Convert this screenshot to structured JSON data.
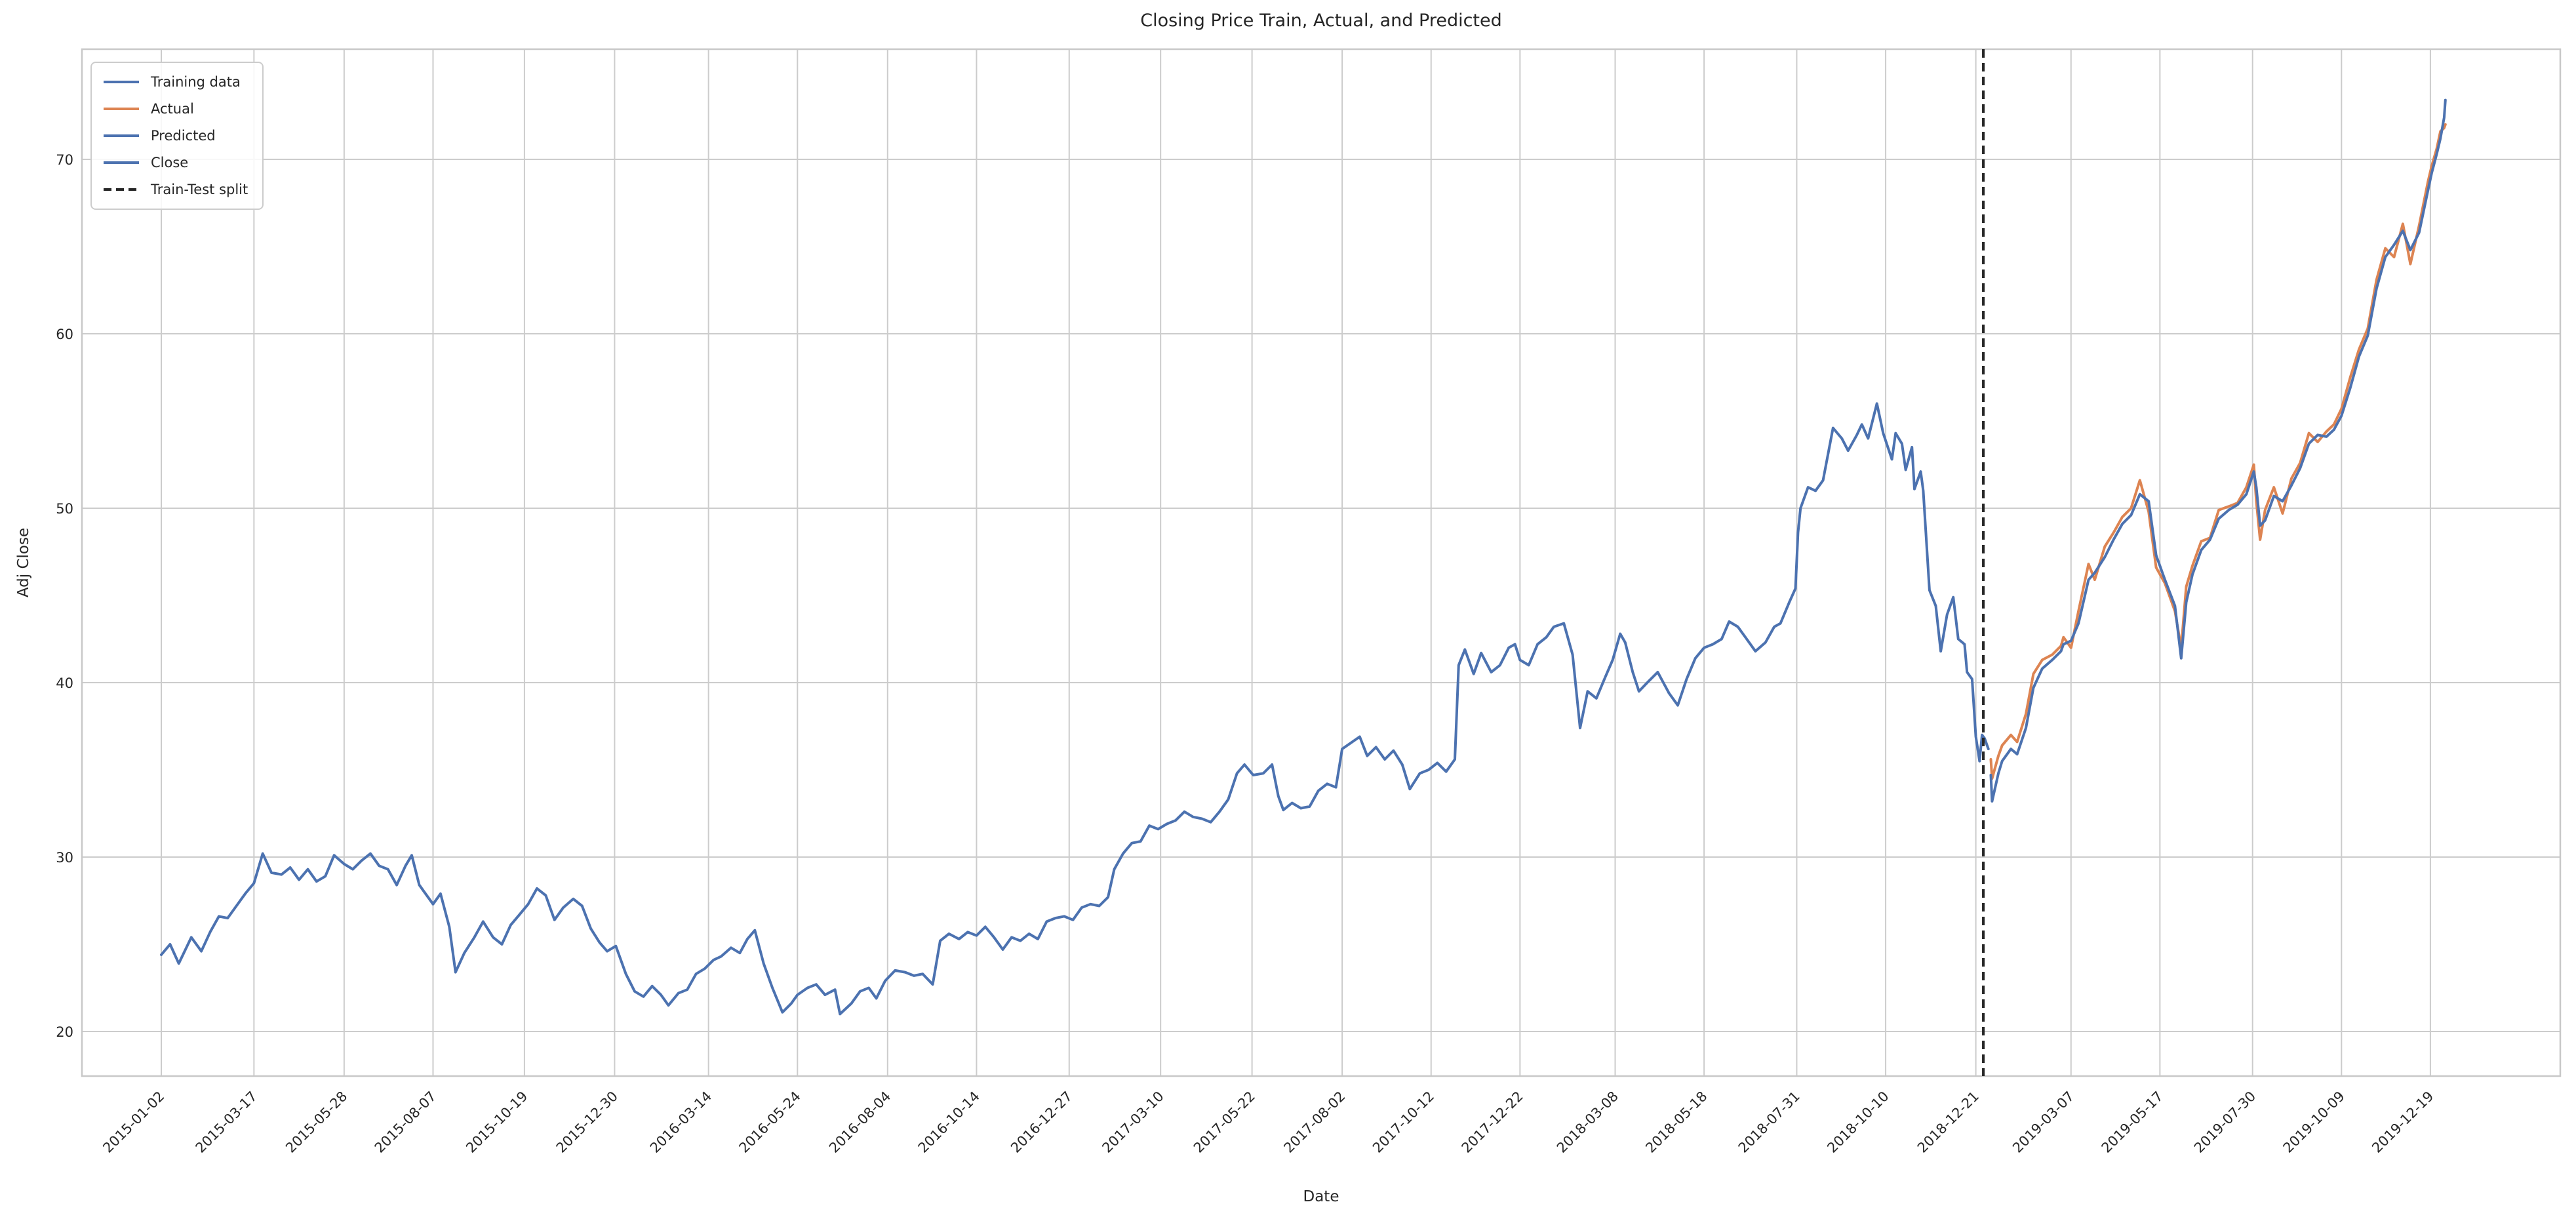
{
  "title": "Closing Price Train, Actual, and Predicted",
  "axis": {
    "xlabel": "Date",
    "ylabel": "Adj Close"
  },
  "colors": {
    "train_blue": "#4c72b0",
    "actual_orange": "#dd8452",
    "split_black": "#262626",
    "grid": "#cccccc",
    "frame": "#c8c8c8",
    "text": "#262626",
    "background": "#ffffff"
  },
  "legend": {
    "position": "upper left",
    "items": [
      {
        "label": "Training data",
        "color": "#4c72b0",
        "dash": "solid"
      },
      {
        "label": "Actual",
        "color": "#dd8452",
        "dash": "solid"
      },
      {
        "label": "Predicted",
        "color": "#4c72b0",
        "dash": "solid"
      },
      {
        "label": "Close",
        "color": "#4c72b0",
        "dash": "solid"
      },
      {
        "label": "Train-Test split",
        "color": "#262626",
        "dash": "dashed"
      }
    ]
  },
  "chart_data": {
    "type": "line",
    "title": "Closing Price Train, Actual, and Predicted",
    "xlabel": "Date",
    "ylabel": "Adj Close",
    "grid": true,
    "legend_position": "upper left",
    "yticks": [
      20,
      30,
      40,
      50,
      60,
      70
    ],
    "ylim": [
      17.4,
      76.3
    ],
    "x_range": {
      "start": "2015-01-02",
      "end": "2019-12-31"
    },
    "x_tick_labels": [
      "2015-01-02",
      "2015-03-17",
      "2015-05-28",
      "2015-08-07",
      "2015-10-19",
      "2015-12-30",
      "2016-03-14",
      "2016-05-24",
      "2016-08-04",
      "2016-10-14",
      "2016-12-27",
      "2017-03-10",
      "2017-05-22",
      "2017-08-02",
      "2017-10-12",
      "2017-12-22",
      "2018-03-08",
      "2018-05-18",
      "2018-07-31",
      "2018-10-10",
      "2018-12-21",
      "2019-03-07",
      "2019-05-17",
      "2019-07-30",
      "2019-10-09",
      "2019-12-19"
    ],
    "train_test_split_date": "2018-12-27",
    "series": [
      {
        "name": "Training data",
        "color": "#4c72b0",
        "line_style": "solid",
        "dates": [
          "2015-01-02",
          "2015-01-09",
          "2015-01-16",
          "2015-01-26",
          "2015-02-03",
          "2015-02-10",
          "2015-02-17",
          "2015-02-24",
          "2015-03-03",
          "2015-03-10",
          "2015-03-17",
          "2015-03-24",
          "2015-03-31",
          "2015-04-08",
          "2015-04-15",
          "2015-04-22",
          "2015-04-29",
          "2015-05-06",
          "2015-05-13",
          "2015-05-20",
          "2015-05-28",
          "2015-06-04",
          "2015-06-11",
          "2015-06-18",
          "2015-06-25",
          "2015-07-02",
          "2015-07-09",
          "2015-07-16",
          "2015-07-21",
          "2015-07-27",
          "2015-07-31",
          "2015-08-07",
          "2015-08-13",
          "2015-08-20",
          "2015-08-25",
          "2015-09-01",
          "2015-09-09",
          "2015-09-16",
          "2015-09-24",
          "2015-10-01",
          "2015-10-08",
          "2015-10-15",
          "2015-10-22",
          "2015-10-29",
          "2015-11-05",
          "2015-11-12",
          "2015-11-19",
          "2015-11-27",
          "2015-12-04",
          "2015-12-11",
          "2015-12-18",
          "2015-12-24",
          "2015-12-31",
          "2016-01-08",
          "2016-01-15",
          "2016-01-22",
          "2016-01-29",
          "2016-02-05",
          "2016-02-11",
          "2016-02-19",
          "2016-02-26",
          "2016-03-04",
          "2016-03-11",
          "2016-03-18",
          "2016-03-24",
          "2016-04-01",
          "2016-04-08",
          "2016-04-14",
          "2016-04-20",
          "2016-04-27",
          "2016-05-04",
          "2016-05-12",
          "2016-05-19",
          "2016-05-24",
          "2016-06-01",
          "2016-06-08",
          "2016-06-15",
          "2016-06-23",
          "2016-06-27",
          "2016-07-06",
          "2016-07-13",
          "2016-07-20",
          "2016-07-26",
          "2016-08-02",
          "2016-08-10",
          "2016-08-18",
          "2016-08-25",
          "2016-09-01",
          "2016-09-09",
          "2016-09-15",
          "2016-09-22",
          "2016-09-30",
          "2016-10-07",
          "2016-10-14",
          "2016-10-21",
          "2016-10-28",
          "2016-11-04",
          "2016-11-11",
          "2016-11-18",
          "2016-11-25",
          "2016-12-02",
          "2016-12-09",
          "2016-12-16",
          "2016-12-23",
          "2016-12-30",
          "2017-01-06",
          "2017-01-13",
          "2017-01-20",
          "2017-01-27",
          "2017-02-01",
          "2017-02-08",
          "2017-02-15",
          "2017-02-22",
          "2017-03-01",
          "2017-03-08",
          "2017-03-15",
          "2017-03-22",
          "2017-03-29",
          "2017-04-05",
          "2017-04-12",
          "2017-04-19",
          "2017-04-26",
          "2017-05-03",
          "2017-05-10",
          "2017-05-16",
          "2017-05-23",
          "2017-05-31",
          "2017-06-07",
          "2017-06-12",
          "2017-06-16",
          "2017-06-23",
          "2017-06-30",
          "2017-07-07",
          "2017-07-14",
          "2017-07-21",
          "2017-07-28",
          "2017-08-02",
          "2017-08-08",
          "2017-08-16",
          "2017-08-22",
          "2017-08-29",
          "2017-09-05",
          "2017-09-12",
          "2017-09-19",
          "2017-09-25",
          "2017-10-03",
          "2017-10-10",
          "2017-10-17",
          "2017-10-24",
          "2017-10-31",
          "2017-11-03",
          "2017-11-08",
          "2017-11-15",
          "2017-11-21",
          "2017-11-29",
          "2017-12-06",
          "2017-12-13",
          "2017-12-18",
          "2017-12-22",
          "2017-12-29",
          "2018-01-05",
          "2018-01-12",
          "2018-01-18",
          "2018-01-26",
          "2018-02-02",
          "2018-02-08",
          "2018-02-14",
          "2018-02-21",
          "2018-02-28",
          "2018-03-06",
          "2018-03-12",
          "2018-03-16",
          "2018-03-22",
          "2018-03-27",
          "2018-04-04",
          "2018-04-11",
          "2018-04-20",
          "2018-04-27",
          "2018-05-04",
          "2018-05-11",
          "2018-05-18",
          "2018-05-25",
          "2018-06-01",
          "2018-06-07",
          "2018-06-14",
          "2018-06-21",
          "2018-06-28",
          "2018-07-06",
          "2018-07-13",
          "2018-07-18",
          "2018-07-25",
          "2018-07-30",
          "2018-08-01",
          "2018-08-03",
          "2018-08-09",
          "2018-08-15",
          "2018-08-21",
          "2018-08-29",
          "2018-09-05",
          "2018-09-10",
          "2018-09-17",
          "2018-09-21",
          "2018-09-26",
          "2018-10-03",
          "2018-10-08",
          "2018-10-15",
          "2018-10-18",
          "2018-10-23",
          "2018-10-26",
          "2018-10-31",
          "2018-11-02",
          "2018-11-07",
          "2018-11-09",
          "2018-11-14",
          "2018-11-19",
          "2018-11-23",
          "2018-11-28",
          "2018-12-03",
          "2018-12-07",
          "2018-12-12",
          "2018-12-14",
          "2018-12-18",
          "2018-12-21",
          "2018-12-24",
          "2018-12-26",
          "2018-12-28",
          "2018-12-31"
        ],
        "values": [
          24.4,
          25.0,
          23.9,
          25.4,
          24.6,
          25.7,
          26.6,
          26.5,
          27.2,
          27.9,
          28.5,
          30.2,
          29.1,
          29.0,
          29.4,
          28.7,
          29.3,
          28.6,
          28.9,
          30.1,
          29.6,
          29.3,
          29.8,
          30.2,
          29.5,
          29.3,
          28.4,
          29.5,
          30.1,
          28.4,
          28.0,
          27.3,
          27.9,
          26.0,
          23.4,
          24.5,
          25.4,
          26.3,
          25.4,
          25.0,
          26.1,
          26.7,
          27.3,
          28.2,
          27.8,
          26.4,
          27.1,
          27.6,
          27.2,
          25.9,
          25.1,
          24.6,
          24.9,
          23.3,
          22.3,
          22.0,
          22.6,
          22.1,
          21.5,
          22.2,
          22.4,
          23.3,
          23.6,
          24.1,
          24.3,
          24.8,
          24.5,
          25.3,
          25.8,
          23.9,
          22.5,
          21.1,
          21.6,
          22.1,
          22.5,
          22.7,
          22.1,
          22.4,
          21.0,
          21.6,
          22.3,
          22.5,
          21.9,
          22.9,
          23.5,
          23.4,
          23.2,
          23.3,
          22.7,
          25.2,
          25.6,
          25.3,
          25.7,
          25.5,
          26.0,
          25.4,
          24.7,
          25.4,
          25.2,
          25.6,
          25.3,
          26.3,
          26.5,
          26.6,
          26.4,
          27.1,
          27.3,
          27.2,
          27.7,
          29.3,
          30.2,
          30.8,
          30.9,
          31.8,
          31.6,
          31.9,
          32.1,
          32.6,
          32.3,
          32.2,
          32.0,
          32.6,
          33.3,
          34.8,
          35.3,
          34.7,
          34.8,
          35.3,
          33.5,
          32.7,
          33.1,
          32.8,
          32.9,
          33.8,
          34.2,
          34.0,
          36.2,
          36.5,
          36.9,
          35.8,
          36.3,
          35.6,
          36.1,
          35.3,
          33.9,
          34.8,
          35.0,
          35.4,
          34.9,
          35.6,
          41.0,
          41.9,
          40.5,
          41.7,
          40.6,
          41.0,
          42.0,
          42.2,
          41.3,
          41.0,
          42.2,
          42.6,
          43.2,
          43.4,
          41.6,
          37.4,
          39.5,
          39.1,
          40.3,
          41.3,
          42.8,
          42.3,
          40.6,
          39.5,
          40.1,
          40.6,
          39.4,
          38.7,
          40.2,
          41.4,
          42.0,
          42.2,
          42.5,
          43.5,
          43.2,
          42.5,
          41.8,
          42.3,
          43.2,
          43.4,
          44.6,
          45.4,
          48.6,
          50.0,
          51.2,
          51.0,
          51.6,
          54.6,
          54.0,
          53.3,
          54.2,
          54.8,
          54.0,
          56.0,
          54.3,
          52.8,
          54.3,
          53.7,
          52.2,
          53.5,
          51.1,
          52.1,
          51.0,
          45.3,
          44.4,
          41.8,
          43.9,
          44.9,
          42.5,
          42.2,
          40.6,
          40.2,
          36.9,
          35.5,
          37.0,
          36.8,
          36.2
        ]
      },
      {
        "name": "Actual",
        "color": "#dd8452",
        "line_style": "solid",
        "dates": [
          "2019-01-02",
          "2019-01-03",
          "2019-01-08",
          "2019-01-11",
          "2019-01-18",
          "2019-01-23",
          "2019-01-30",
          "2019-02-05",
          "2019-02-12",
          "2019-02-20",
          "2019-02-27",
          "2019-03-01",
          "2019-03-07",
          "2019-03-13",
          "2019-03-21",
          "2019-03-26",
          "2019-04-03",
          "2019-04-10",
          "2019-04-17",
          "2019-04-24",
          "2019-05-01",
          "2019-05-08",
          "2019-05-14",
          "2019-05-21",
          "2019-05-29",
          "2019-06-03",
          "2019-06-07",
          "2019-06-12",
          "2019-06-19",
          "2019-06-26",
          "2019-07-03",
          "2019-07-11",
          "2019-07-18",
          "2019-07-25",
          "2019-07-31",
          "2019-08-02",
          "2019-08-05",
          "2019-08-09",
          "2019-08-16",
          "2019-08-23",
          "2019-08-30",
          "2019-09-06",
          "2019-09-13",
          "2019-09-20",
          "2019-09-27",
          "2019-10-03",
          "2019-10-09",
          "2019-10-16",
          "2019-10-23",
          "2019-10-30",
          "2019-11-06",
          "2019-11-13",
          "2019-11-20",
          "2019-11-27",
          "2019-12-03",
          "2019-12-10",
          "2019-12-17",
          "2019-12-20",
          "2019-12-24",
          "2019-12-27",
          "2019-12-30",
          "2019-12-31"
        ],
        "values": [
          35.6,
          34.5,
          35.8,
          36.4,
          37.0,
          36.6,
          38.2,
          40.5,
          41.3,
          41.6,
          42.1,
          42.6,
          42.0,
          44.1,
          46.8,
          45.9,
          47.8,
          48.6,
          49.5,
          50.0,
          51.6,
          49.8,
          46.6,
          45.7,
          44.1,
          42.0,
          45.5,
          46.7,
          48.1,
          48.3,
          49.9,
          50.1,
          50.3,
          51.2,
          52.5,
          50.4,
          48.2,
          49.9,
          51.2,
          49.7,
          51.7,
          52.6,
          54.3,
          53.8,
          54.4,
          54.8,
          55.7,
          57.5,
          59.1,
          60.3,
          63.1,
          64.9,
          64.4,
          66.3,
          64.0,
          66.2,
          68.7,
          69.6,
          70.6,
          71.6,
          71.8,
          72.0
        ]
      },
      {
        "name": "Predicted",
        "color": "#4c72b0",
        "line_style": "solid",
        "dates": [
          "2019-01-02",
          "2019-01-03",
          "2019-01-08",
          "2019-01-11",
          "2019-01-18",
          "2019-01-23",
          "2019-01-30",
          "2019-02-05",
          "2019-02-12",
          "2019-02-20",
          "2019-02-27",
          "2019-03-01",
          "2019-03-07",
          "2019-03-13",
          "2019-03-21",
          "2019-03-26",
          "2019-04-03",
          "2019-04-10",
          "2019-04-17",
          "2019-04-24",
          "2019-05-01",
          "2019-05-08",
          "2019-05-14",
          "2019-05-21",
          "2019-05-29",
          "2019-06-03",
          "2019-06-07",
          "2019-06-12",
          "2019-06-19",
          "2019-06-26",
          "2019-07-03",
          "2019-07-11",
          "2019-07-18",
          "2019-07-25",
          "2019-07-31",
          "2019-08-02",
          "2019-08-05",
          "2019-08-09",
          "2019-08-16",
          "2019-08-23",
          "2019-08-30",
          "2019-09-06",
          "2019-09-13",
          "2019-09-20",
          "2019-09-27",
          "2019-10-03",
          "2019-10-09",
          "2019-10-16",
          "2019-10-23",
          "2019-10-30",
          "2019-11-06",
          "2019-11-13",
          "2019-11-20",
          "2019-11-27",
          "2019-12-03",
          "2019-12-10",
          "2019-12-17",
          "2019-12-20",
          "2019-12-24",
          "2019-12-27",
          "2019-12-30",
          "2019-12-31"
        ],
        "values": [
          34.7,
          33.2,
          34.8,
          35.5,
          36.2,
          35.9,
          37.4,
          39.7,
          40.8,
          41.3,
          41.8,
          42.2,
          42.4,
          43.4,
          45.9,
          46.3,
          47.2,
          48.2,
          49.1,
          49.6,
          50.8,
          50.4,
          47.3,
          45.9,
          44.4,
          41.4,
          44.6,
          46.2,
          47.6,
          48.2,
          49.4,
          49.9,
          50.2,
          50.8,
          52.1,
          51.2,
          49.0,
          49.3,
          50.7,
          50.4,
          51.3,
          52.3,
          53.7,
          54.2,
          54.1,
          54.5,
          55.3,
          56.9,
          58.7,
          59.9,
          62.6,
          64.4,
          65.1,
          65.9,
          64.8,
          65.8,
          68.2,
          69.2,
          70.3,
          71.2,
          72.4,
          73.4
        ]
      },
      {
        "name": "Close",
        "color": "#4c72b0",
        "line_style": "solid",
        "overlaps": "same underlying close-price series; fully hidden beneath Training data and Actual lines"
      },
      {
        "name": "Train-Test split",
        "type": "vline",
        "color": "#262626",
        "line_style": "dashed",
        "date": "2018-12-27"
      }
    ]
  }
}
